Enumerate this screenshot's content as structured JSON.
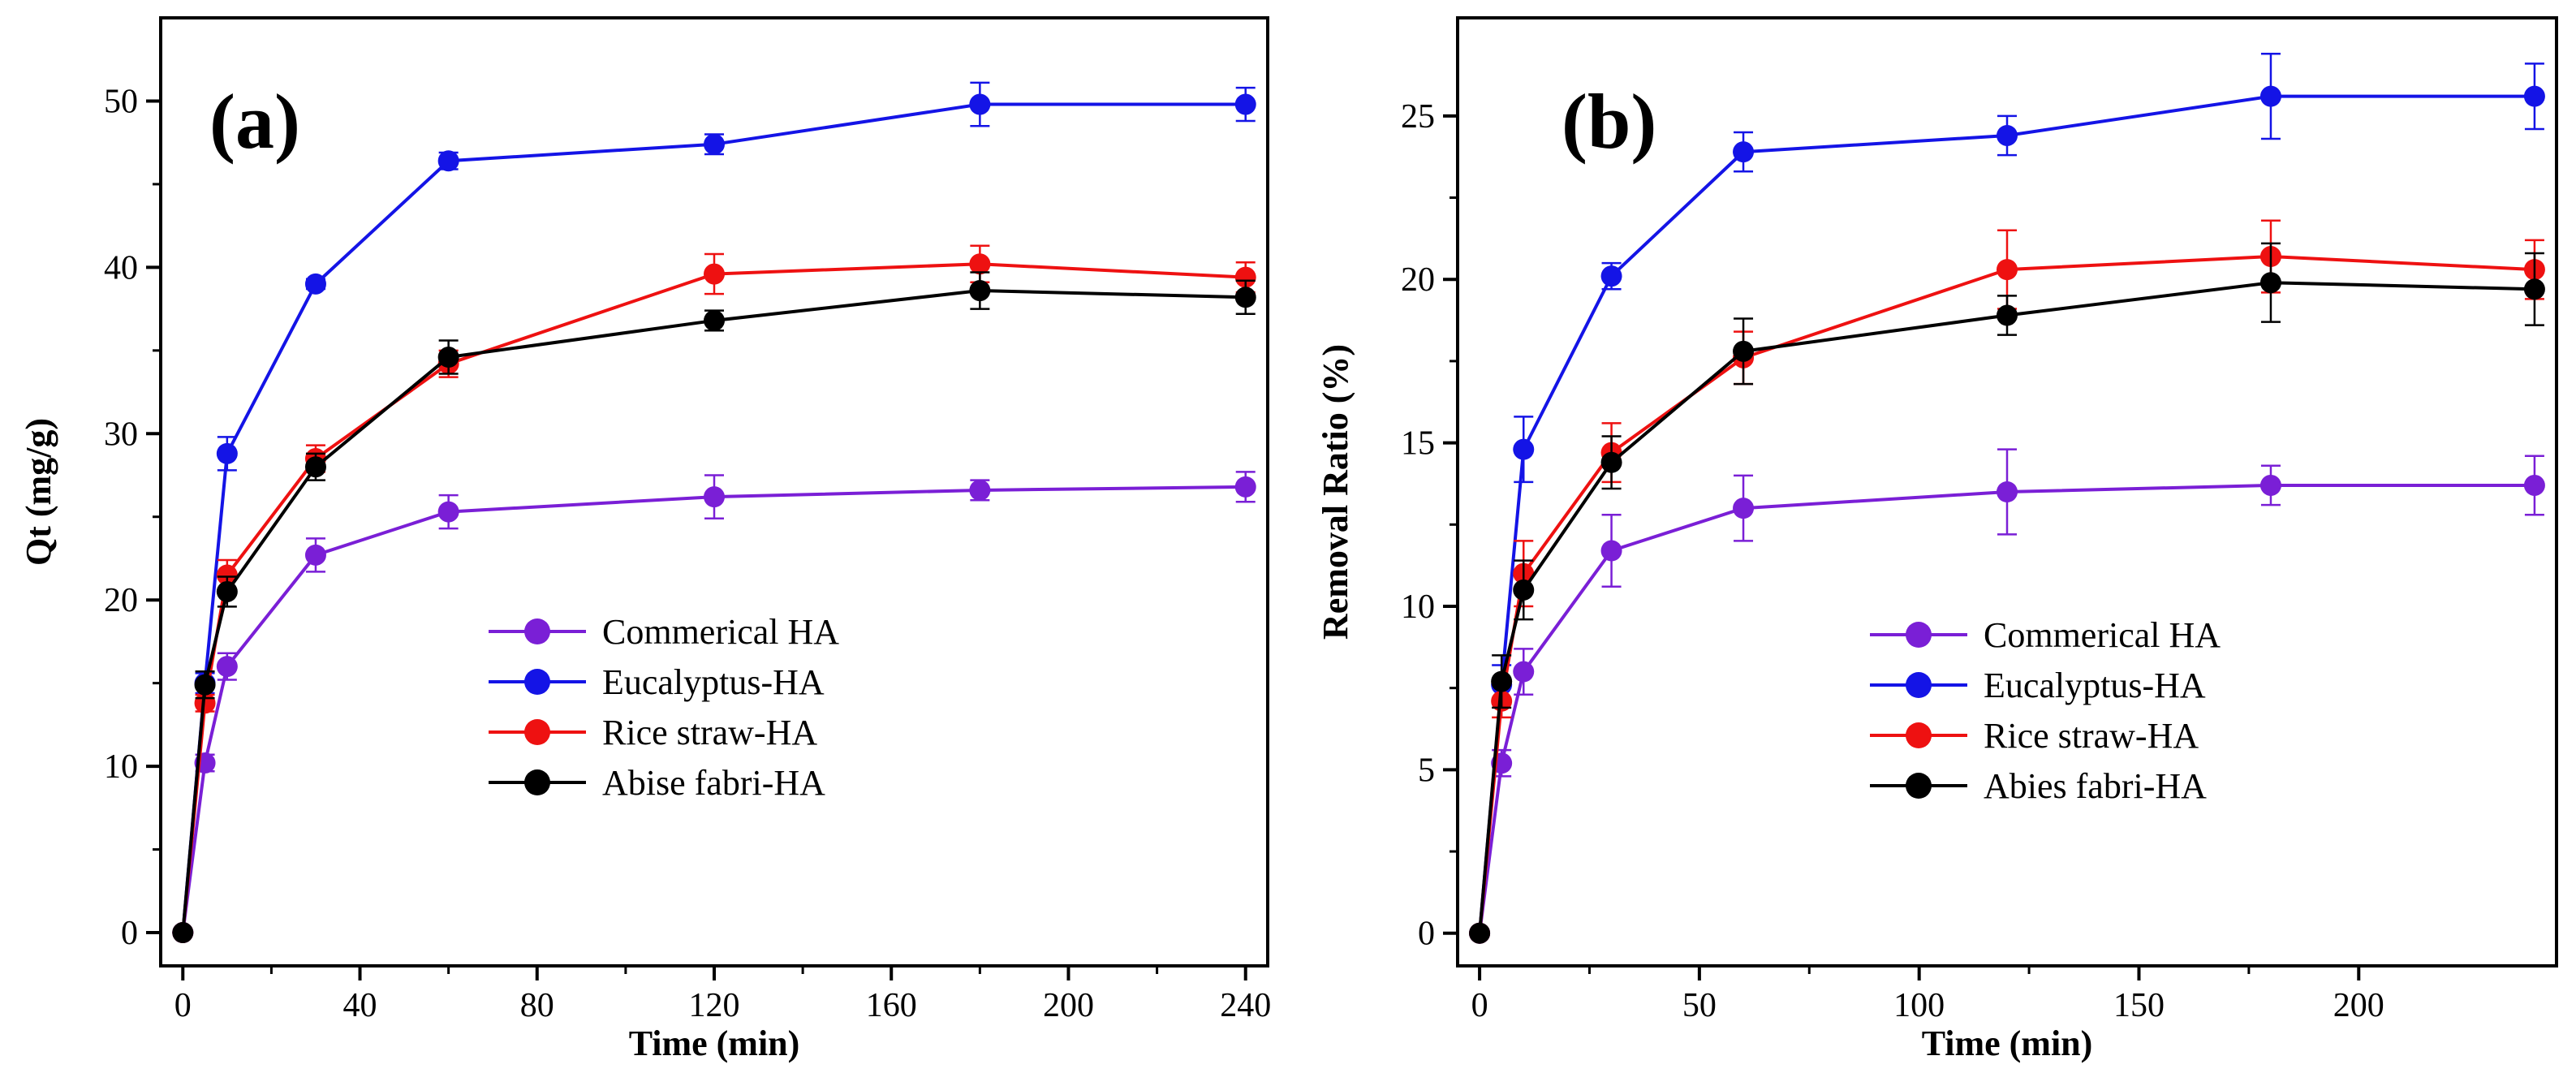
{
  "chart_data": [
    {
      "type": "line",
      "panel_label": "(a)",
      "xlabel": "Time (min)",
      "ylabel": "Qt (mg/g)",
      "xlim": [
        -5,
        245
      ],
      "ylim": [
        -2,
        55
      ],
      "xticks": [
        0,
        40,
        80,
        120,
        160,
        200,
        240
      ],
      "xtick_labels": [
        "0",
        "40",
        "80",
        "120",
        "160",
        "200",
        "240"
      ],
      "yticks": [
        0,
        10,
        20,
        30,
        40,
        50
      ],
      "ytick_labels": [
        "0",
        "10",
        "20",
        "30",
        "40",
        "50"
      ],
      "legend_position": "bottom-right",
      "x": [
        0,
        5,
        10,
        30,
        60,
        120,
        180,
        240
      ],
      "series": [
        {
          "name": "Commerical HA",
          "color": "#7a1fd6",
          "values": [
            0,
            10.2,
            16.0,
            22.7,
            25.3,
            26.2,
            26.6,
            26.8
          ],
          "errors": [
            0,
            0.5,
            0.8,
            1.0,
            1.0,
            1.3,
            0.6,
            0.9
          ]
        },
        {
          "name": "Eucalyptus-HA",
          "color": "#1414e6",
          "values": [
            0,
            15.0,
            28.8,
            39.0,
            46.4,
            47.4,
            49.8,
            49.8
          ],
          "errors": [
            0,
            0.6,
            1.0,
            0.3,
            0.5,
            0.6,
            1.3,
            1.0
          ]
        },
        {
          "name": "Rice straw-HA",
          "color": "#ee1111",
          "values": [
            0,
            13.8,
            21.5,
            28.5,
            34.2,
            39.6,
            40.2,
            39.4
          ],
          "errors": [
            0,
            0.5,
            0.9,
            0.8,
            0.8,
            1.2,
            1.1,
            0.9
          ]
        },
        {
          "name": "Abise fabri-HA",
          "color": "#000000",
          "values": [
            0,
            14.9,
            20.5,
            28.0,
            34.6,
            36.8,
            38.6,
            38.2
          ],
          "errors": [
            0,
            0.8,
            0.9,
            0.8,
            1.0,
            0.6,
            1.1,
            1.0
          ]
        }
      ]
    },
    {
      "type": "line",
      "panel_label": "(b)",
      "xlabel": "Time (min)",
      "ylabel": "Removal Ratio (%)",
      "xlim": [
        -5,
        245
      ],
      "ylim": [
        -1,
        28
      ],
      "xticks": [
        0,
        50,
        100,
        150,
        200
      ],
      "xtick_labels": [
        "0",
        "50",
        "100",
        "150",
        "200"
      ],
      "yticks": [
        0,
        5,
        10,
        15,
        20,
        25
      ],
      "ytick_labels": [
        "0",
        "5",
        "10",
        "15",
        "20",
        "25"
      ],
      "legend_position": "bottom-right",
      "x": [
        0,
        5,
        10,
        30,
        60,
        120,
        180,
        240
      ],
      "series": [
        {
          "name": "Commerical HA",
          "color": "#7a1fd6",
          "values": [
            0,
            5.2,
            8.0,
            11.7,
            13.0,
            13.5,
            13.7,
            13.7
          ],
          "errors": [
            0,
            0.4,
            0.7,
            1.1,
            1.0,
            1.3,
            0.6,
            0.9
          ]
        },
        {
          "name": "Eucalyptus-HA",
          "color": "#1414e6",
          "values": [
            0,
            7.6,
            14.8,
            20.1,
            23.9,
            24.4,
            25.6,
            25.6
          ],
          "errors": [
            0,
            0.6,
            1.0,
            0.4,
            0.6,
            0.6,
            1.3,
            1.0
          ]
        },
        {
          "name": "Rice straw-HA",
          "color": "#ee1111",
          "values": [
            0,
            7.1,
            11.0,
            14.7,
            17.6,
            20.3,
            20.7,
            20.3
          ],
          "errors": [
            0,
            0.5,
            1.0,
            0.9,
            0.8,
            1.2,
            1.1,
            0.9
          ]
        },
        {
          "name": "Abies fabri-HA",
          "color": "#000000",
          "values": [
            0,
            7.7,
            10.5,
            14.4,
            17.8,
            18.9,
            19.9,
            19.7
          ],
          "errors": [
            0,
            0.8,
            0.9,
            0.8,
            1.0,
            0.6,
            1.2,
            1.1
          ]
        }
      ]
    }
  ]
}
